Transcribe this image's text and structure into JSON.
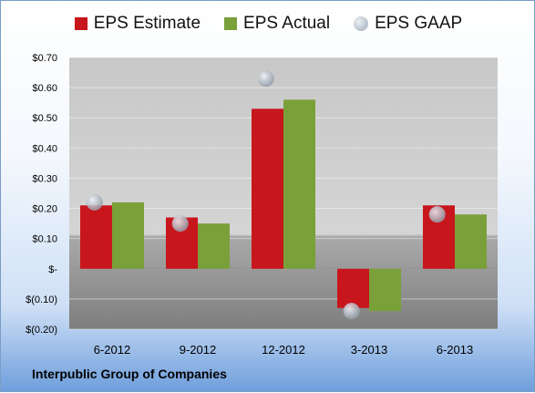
{
  "chart_data": {
    "type": "bar",
    "categories": [
      "6-2012",
      "9-2012",
      "12-2012",
      "3-2013",
      "6-2013"
    ],
    "series": [
      {
        "name": "EPS Estimate",
        "values": [
          0.21,
          0.17,
          0.53,
          -0.13,
          0.21
        ],
        "color": "#c8161d"
      },
      {
        "name": "EPS Actual",
        "values": [
          0.22,
          0.15,
          0.56,
          -0.14,
          0.18
        ],
        "color": "#7aa03a"
      },
      {
        "name": "EPS GAAP",
        "values": [
          0.22,
          0.15,
          0.63,
          -0.14,
          0.18
        ],
        "color": "#b5bcc5",
        "style": "marker"
      }
    ],
    "yticks": [
      "$0.70",
      "$0.60",
      "$0.50",
      "$0.40",
      "$0.30",
      "$0.20",
      "$0.10",
      "$-",
      "$(0.10)",
      "$(0.20)"
    ],
    "ylim": [
      -0.2,
      0.7
    ],
    "title": "",
    "xlabel": "",
    "ylabel": "",
    "grid": true,
    "legend_position": "top"
  },
  "company_name": "Interpublic Group of Companies",
  "legend": {
    "estimate": "EPS Estimate",
    "actual": "EPS Actual",
    "gaap": "EPS GAAP"
  }
}
